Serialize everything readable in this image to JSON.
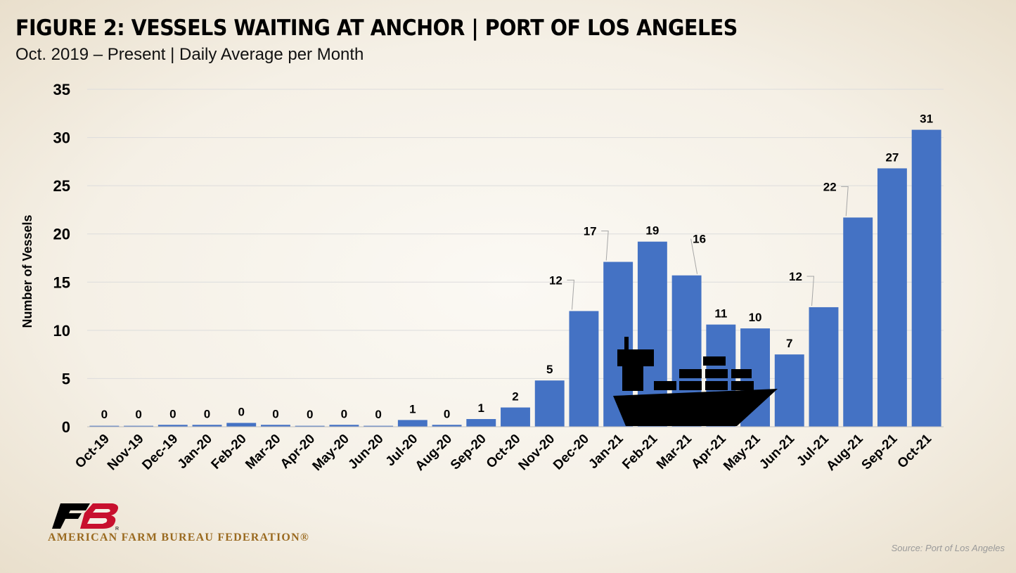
{
  "header": {
    "title": "FIGURE 2: VESSELS WAITING AT ANCHOR | PORT OF LOS ANGELES",
    "subtitle": "Oct. 2019 – Present | Daily Average per Month"
  },
  "chart_data": {
    "type": "bar",
    "title": "FIGURE 2: VESSELS WAITING AT ANCHOR | PORT OF LOS ANGELES",
    "subtitle": "Oct. 2019 – Present | Daily Average per Month",
    "xlabel": "",
    "ylabel": "Number of Vessels",
    "ylim": [
      0,
      35
    ],
    "yticks": [
      0,
      5,
      10,
      15,
      20,
      25,
      30,
      35
    ],
    "grid": true,
    "categories": [
      "Oct-19",
      "Nov-19",
      "Dec-19",
      "Jan-20",
      "Feb-20",
      "Mar-20",
      "Apr-20",
      "May-20",
      "Jun-20",
      "Jul-20",
      "Aug-20",
      "Sep-20",
      "Oct-20",
      "Nov-20",
      "Dec-20",
      "Jan-21",
      "Feb-21",
      "Mar-21",
      "Apr-21",
      "May-21",
      "Jun-21",
      "Jul-21",
      "Aug-21",
      "Sep-21",
      "Oct-21"
    ],
    "values": [
      0.1,
      0.1,
      0.2,
      0.2,
      0.4,
      0.2,
      0.1,
      0.2,
      0.1,
      0.7,
      0.2,
      0.8,
      2.0,
      4.8,
      12.0,
      17.1,
      19.2,
      15.7,
      10.6,
      10.2,
      7.5,
      12.4,
      21.7,
      26.8,
      30.8
    ],
    "data_labels": [
      "0",
      "0",
      "0",
      "0",
      "0",
      "0",
      "0",
      "0",
      "0",
      "1",
      "0",
      "1",
      "2",
      "5",
      "12",
      "17",
      "19",
      "16",
      "11",
      "10",
      "7",
      "12",
      "22",
      "27",
      "31"
    ],
    "bar_color": "#4472c4"
  },
  "branding": {
    "org_name": "AMERICAN FARM BUREAU FEDERATION®",
    "logo_mark": "R"
  },
  "footer": {
    "source": "Source: Port of Los Angeles"
  }
}
